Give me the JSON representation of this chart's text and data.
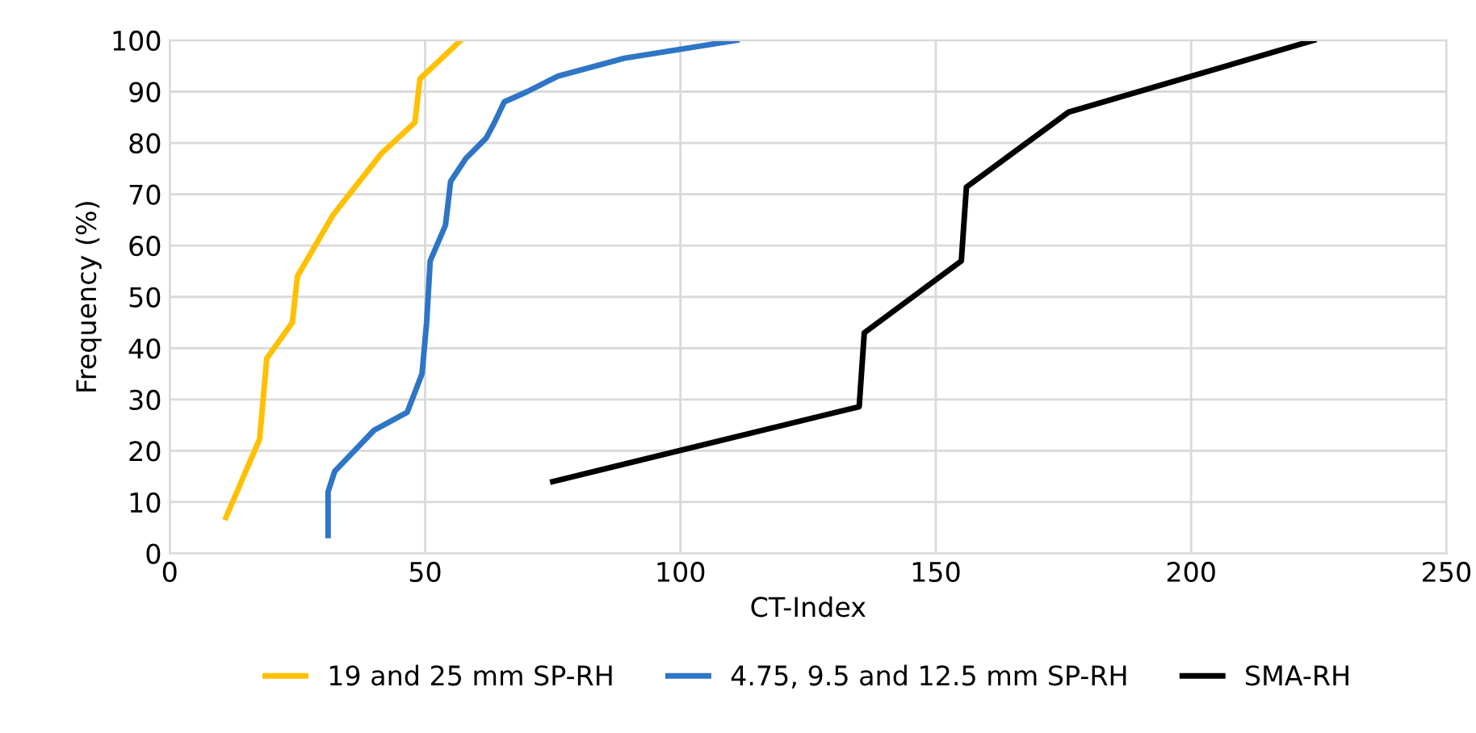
{
  "chart_data": {
    "type": "line",
    "xlabel": "CT-Index",
    "ylabel": "Frequency (%)",
    "xlim": [
      0,
      250
    ],
    "xticks": [
      0,
      50,
      100,
      150,
      200,
      250
    ],
    "ylim": [
      0,
      100
    ],
    "yticks": [
      0,
      10,
      20,
      30,
      40,
      50,
      60,
      70,
      80,
      90,
      100
    ],
    "grid": true,
    "legend": "bottom",
    "marker": "none",
    "line_style": "solid",
    "series": [
      {
        "name": "19 and 25 mm SP-RH",
        "color": "#ffc000",
        "x": [
          11,
          17.6,
          19,
          24,
          25,
          32,
          41.5,
          48,
          49,
          57
        ],
        "values": [
          7,
          22.3,
          38,
          45,
          54,
          66,
          78,
          84,
          92.5,
          100
        ]
      },
      {
        "name": "4.75, 9.5 and 12.5 mm SP-RH",
        "color": "#2e75c6",
        "x": [
          31,
          31,
          32.3,
          40,
          46.5,
          49.4,
          50.3,
          51,
          54,
          55,
          58,
          62,
          63.6,
          65.5,
          70,
          76,
          89,
          111
        ],
        "values": [
          3.5,
          12,
          16,
          24,
          27.5,
          35,
          45,
          57,
          64,
          72.5,
          77,
          81,
          84,
          88,
          90,
          93,
          96.5,
          100
        ]
      },
      {
        "name": "SMA-RH",
        "color": "#000000",
        "x": [
          75,
          135,
          136,
          155,
          156,
          176,
          224
        ],
        "values": [
          14,
          28.6,
          43,
          57,
          71.4,
          86,
          100
        ]
      }
    ]
  }
}
